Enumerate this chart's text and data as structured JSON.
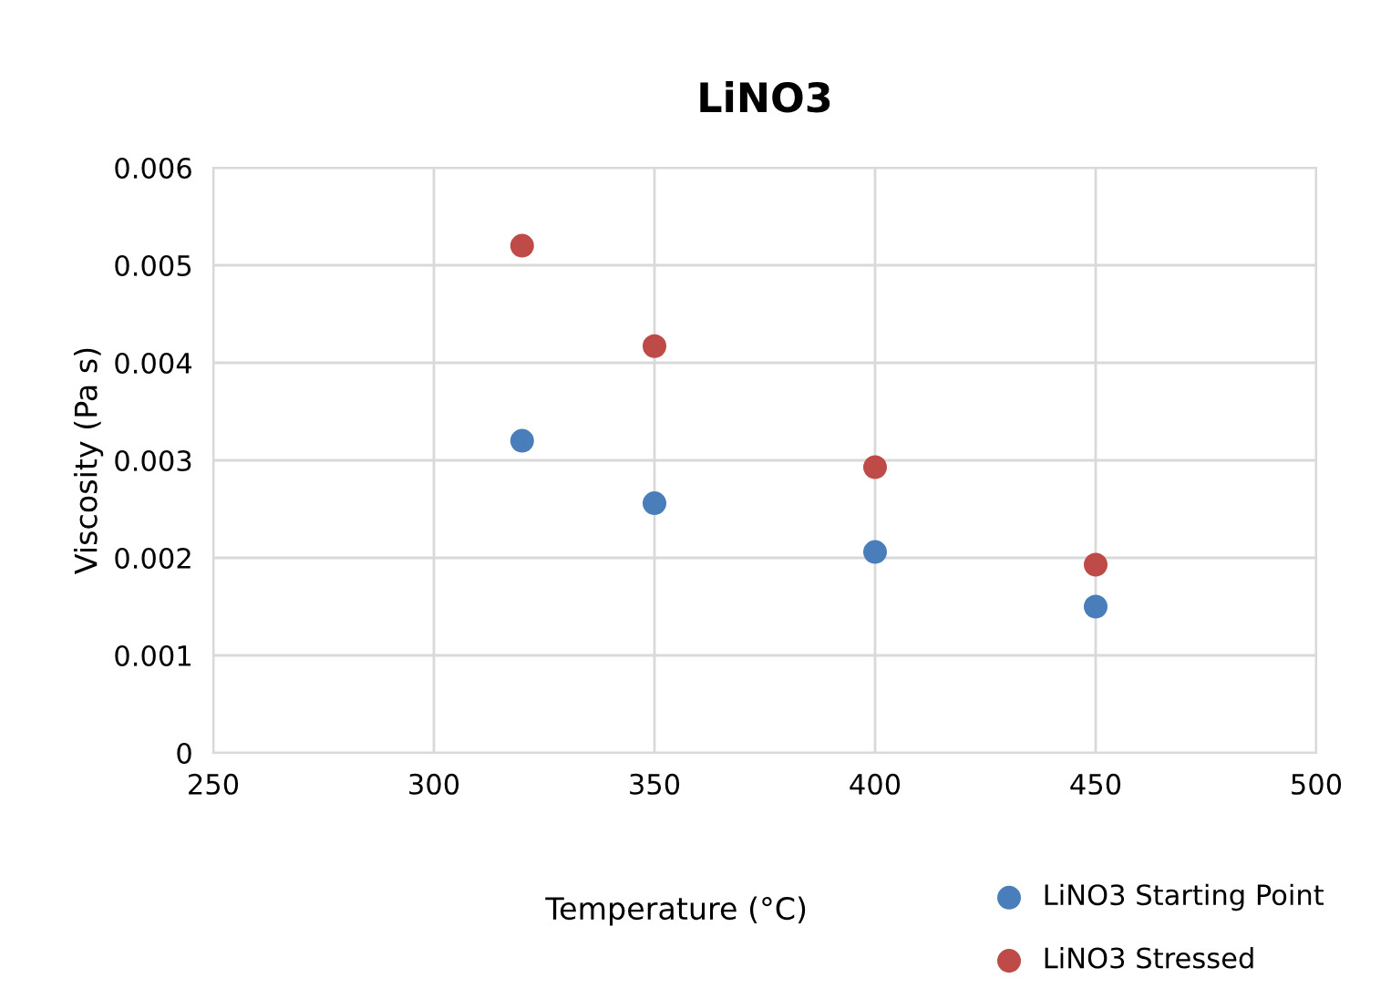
{
  "chart_data": {
    "type": "scatter",
    "title": "LiNO3",
    "xlabel": "Temperature (°C)",
    "ylabel": "Viscosity (Pa s)",
    "x": [
      320,
      350,
      400,
      450
    ],
    "series": [
      {
        "name": "LiNO3 Starting Point",
        "color": "#4a7ebb",
        "values": [
          0.0032,
          0.00256,
          0.00206,
          0.0015
        ]
      },
      {
        "name": "LiNO3 Stressed",
        "color": "#be4b48",
        "values": [
          0.0052,
          0.00417,
          0.00293,
          0.00193
        ]
      }
    ],
    "xlim": [
      250,
      500
    ],
    "xticks": [
      250,
      300,
      350,
      400,
      450,
      500
    ],
    "ylim": [
      0,
      0.006
    ],
    "yticks": [
      {
        "value": 0,
        "label": "0"
      },
      0.001,
      0.002,
      0.003,
      0.004,
      0.005,
      0.006
    ],
    "grid": true,
    "legend": "bottom right",
    "marker": "circle"
  }
}
